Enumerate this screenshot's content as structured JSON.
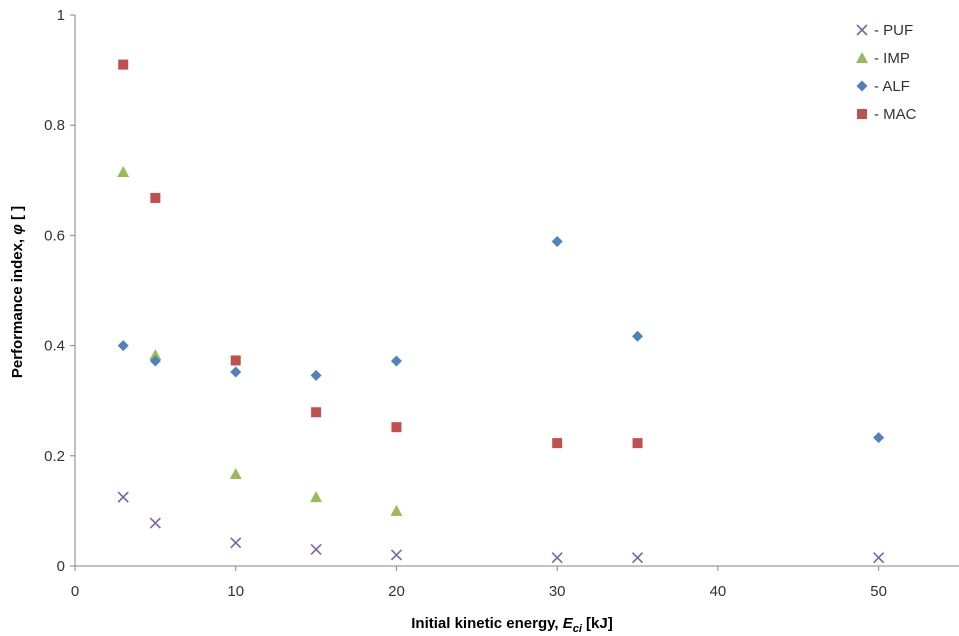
{
  "chart_data": {
    "type": "scatter",
    "xlabel": {
      "main": "Initial kinetic energy, ",
      "var": "E",
      "sub": "ci",
      "unit": " [kJ]"
    },
    "ylabel": {
      "main": "Performance index, ",
      "var": "φ",
      "unit": " [ ]"
    },
    "xlim": [
      0,
      55
    ],
    "ylim": [
      0,
      1
    ],
    "xticks": [
      0,
      10,
      20,
      30,
      40,
      50
    ],
    "yticks": [
      0,
      0.2,
      0.4,
      0.6,
      0.8,
      1
    ],
    "ytick_labels": [
      "0",
      "0.2",
      "0.4",
      "0.6",
      "0.8",
      "1"
    ],
    "grid": false,
    "legend_position": "top-right",
    "series": [
      {
        "name": "- PUF",
        "marker": "x",
        "color": "#8064a2",
        "x": [
          3,
          5,
          10,
          15,
          20,
          30,
          35,
          50
        ],
        "y": [
          0.125,
          0.078,
          0.042,
          0.03,
          0.02,
          0.015,
          0.015,
          0.015
        ]
      },
      {
        "name": "- IMP",
        "marker": "triangle",
        "color": "#9bbb59",
        "x": [
          3,
          5,
          10,
          15,
          20
        ],
        "y": [
          0.715,
          0.383,
          0.167,
          0.125,
          0.1
        ]
      },
      {
        "name": "- ALF",
        "marker": "diamond",
        "color": "#4f81bd",
        "x": [
          3,
          5,
          10,
          15,
          20,
          30,
          35,
          50
        ],
        "y": [
          0.4,
          0.372,
          0.352,
          0.346,
          0.372,
          0.589,
          0.417,
          0.233
        ]
      },
      {
        "name": "- MAC",
        "marker": "square",
        "color": "#c0504d",
        "x": [
          3,
          5,
          10,
          15,
          20,
          30,
          35
        ],
        "y": [
          0.91,
          0.668,
          0.373,
          0.279,
          0.252,
          0.223,
          0.223
        ]
      }
    ]
  }
}
